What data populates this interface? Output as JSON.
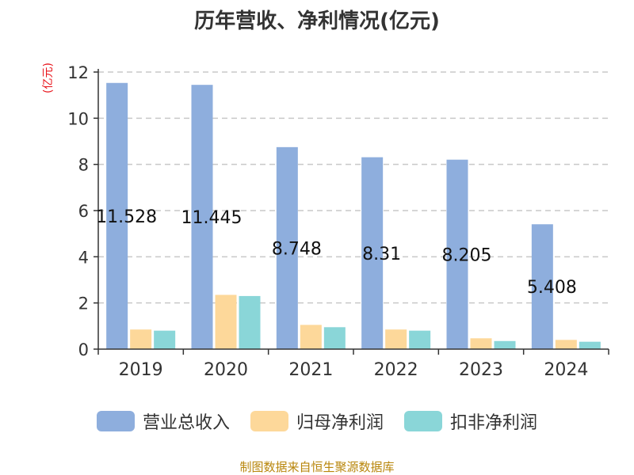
{
  "chart_data": {
    "type": "bar",
    "title": "历年营收、净利情况(亿元)",
    "y_unit": "(亿元)",
    "categories": [
      "2019",
      "2020",
      "2021",
      "2022",
      "2023",
      "2024"
    ],
    "series": [
      {
        "name": "营业总收入",
        "values": [
          11.528,
          11.445,
          8.748,
          8.31,
          8.205,
          5.408
        ],
        "color": "#8eaedd",
        "data_labels": [
          "11.528",
          "11.445",
          "8.748",
          "8.31",
          "8.205",
          "5.408"
        ]
      },
      {
        "name": "归母净利润",
        "values": [
          0.85,
          2.35,
          1.05,
          0.85,
          0.47,
          0.4
        ],
        "color": "#fdd89a"
      },
      {
        "name": "扣非净利润",
        "values": [
          0.8,
          2.3,
          0.95,
          0.8,
          0.35,
          0.32
        ],
        "color": "#8ad6d8"
      }
    ],
    "yticks": [
      "0",
      "2",
      "4",
      "6",
      "8",
      "10",
      "12"
    ],
    "ylim": [
      0,
      12
    ],
    "grid": true,
    "legend_position": "bottom",
    "source": "制图数据来自恒生聚源数据库"
  }
}
